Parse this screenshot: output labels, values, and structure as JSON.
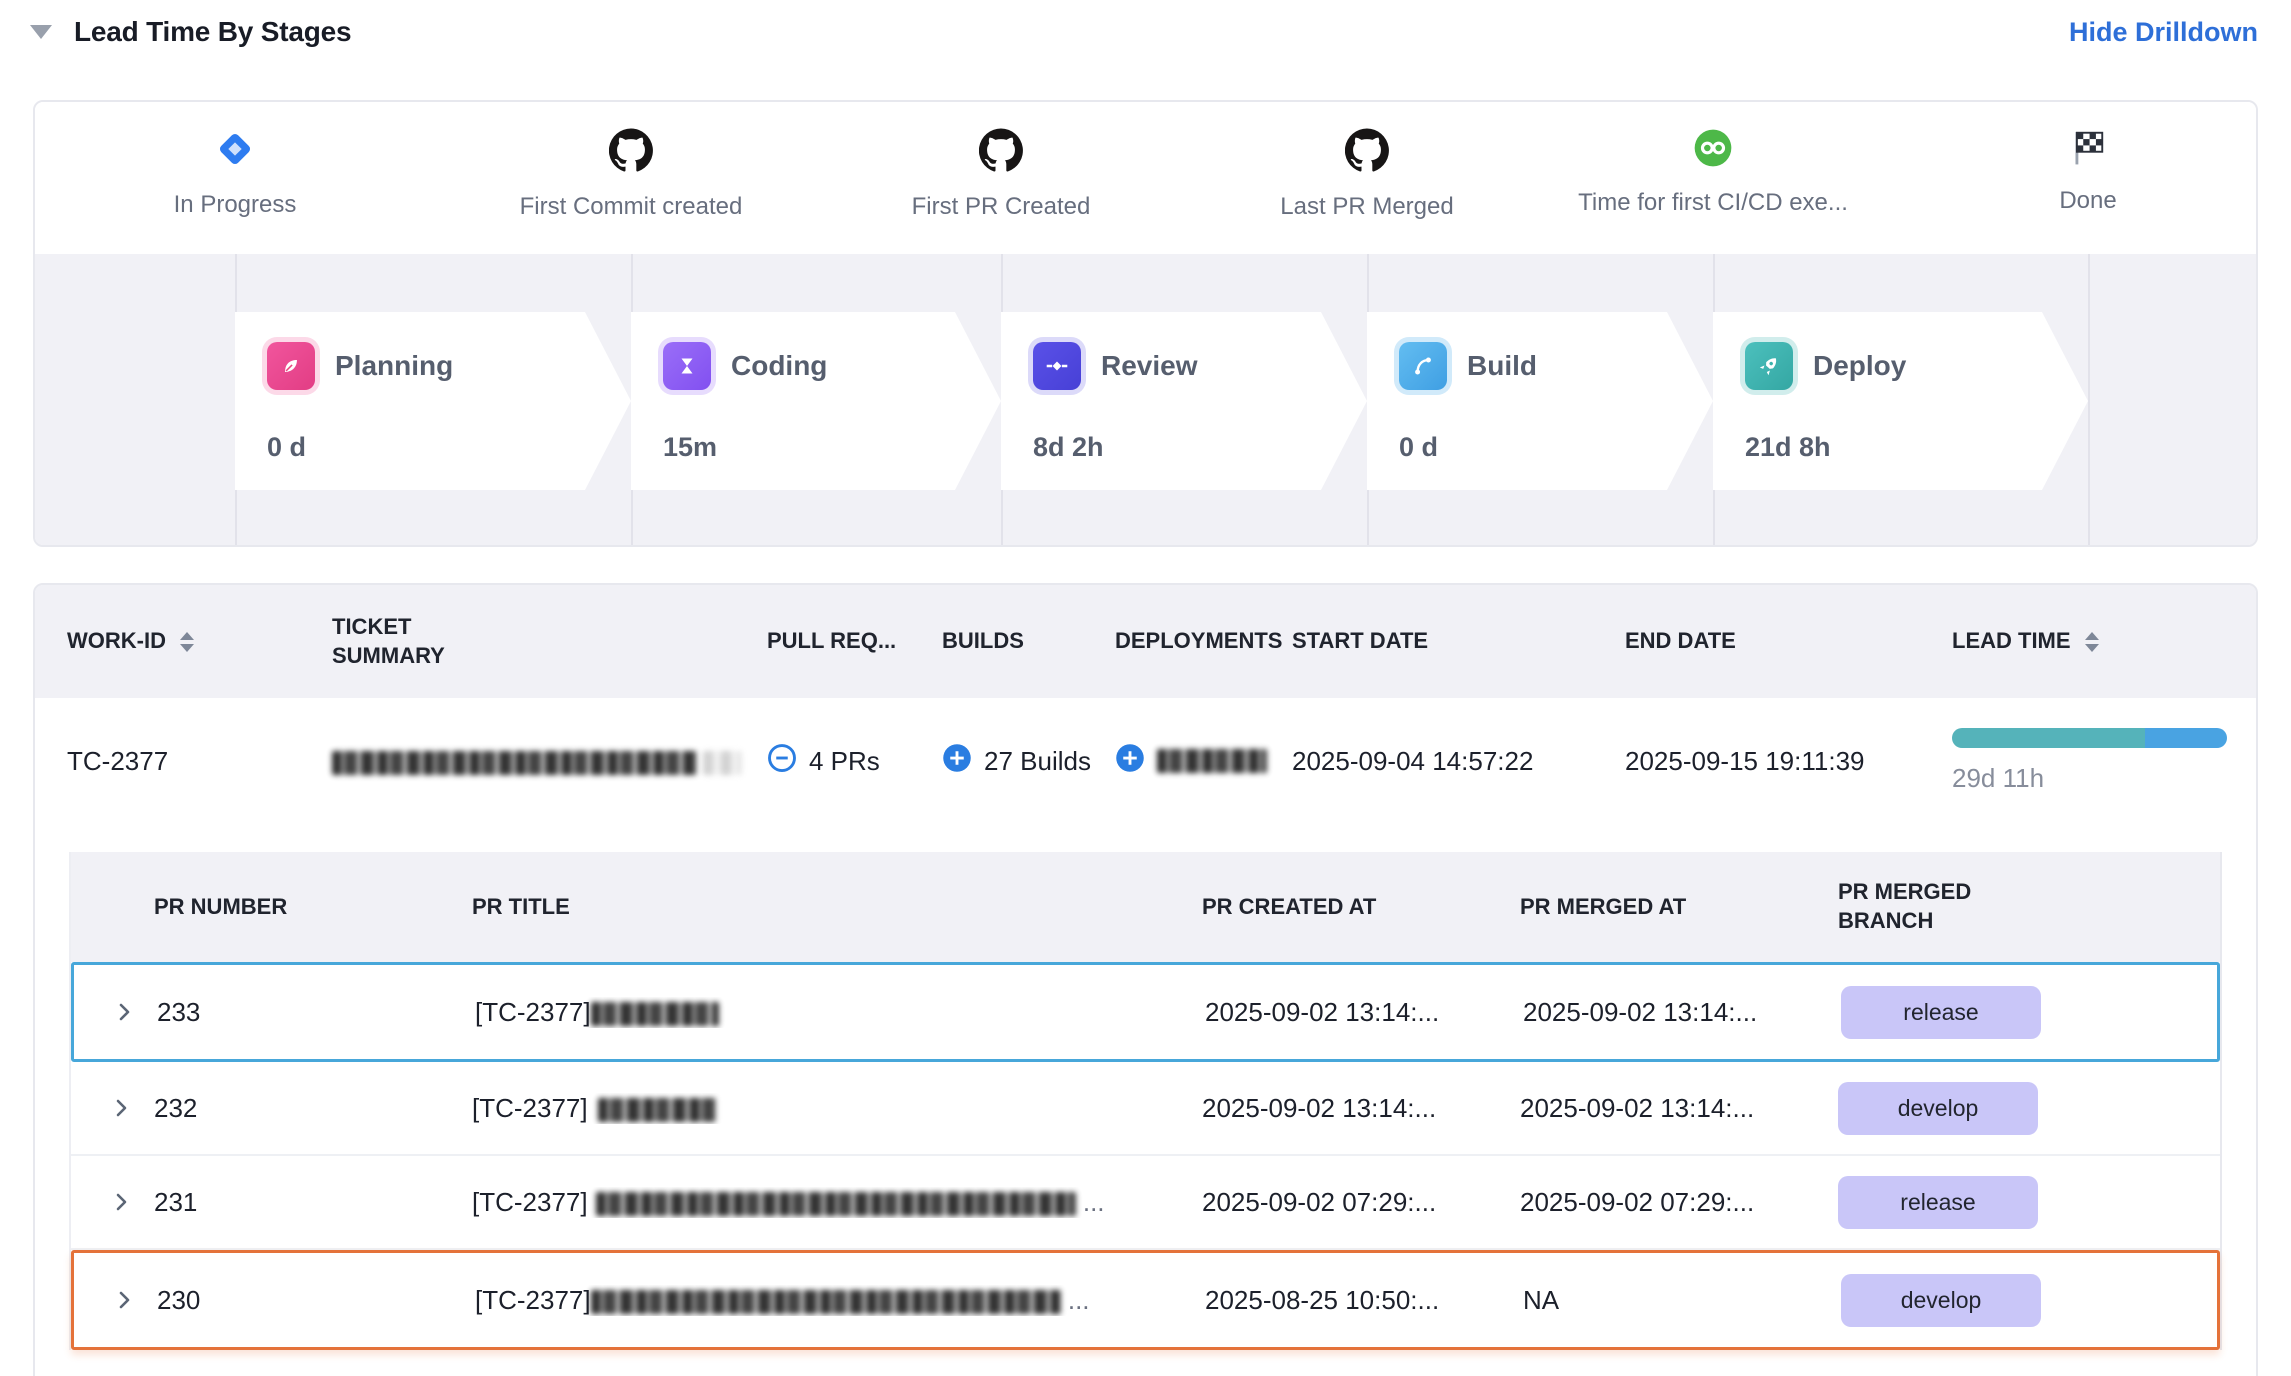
{
  "header": {
    "title": "Lead Time By Stages",
    "drilldown_toggle": "Hide Drilldown"
  },
  "colors": {
    "accent_blue": "#2e6fd8",
    "panel_bg": "#f1f1f6",
    "stage_planning": "#e9457f",
    "stage_coding": "#8b5cf6",
    "stage_review": "#4f46e0",
    "stage_build": "#49a9e9",
    "stage_deploy": "#3db4ad",
    "lead_bar_teal": "#55b3ba",
    "lead_bar_blue": "#49a3e2",
    "badge_bg": "#c9c6f8",
    "highlight_blue": "#47a7da",
    "highlight_orange": "#e4723a",
    "github_black": "#171515",
    "cicd_green": "#4db848",
    "jira_blue": "#2e7cf0"
  },
  "milestones": [
    {
      "label": "In Progress"
    },
    {
      "label": "First Commit created"
    },
    {
      "label": "First PR Created"
    },
    {
      "label": "Last PR Merged"
    },
    {
      "label": "Time for first CI/CD exe..."
    },
    {
      "label": "Done"
    }
  ],
  "stages": [
    {
      "name": "Planning",
      "duration": "0 d"
    },
    {
      "name": "Coding",
      "duration": "15m"
    },
    {
      "name": "Review",
      "duration": "8d 2h"
    },
    {
      "name": "Build",
      "duration": "0 d"
    },
    {
      "name": "Deploy",
      "duration": "21d 8h"
    }
  ],
  "work_table": {
    "columns": [
      "WORK-ID",
      "TICKET SUMMARY",
      "PULL REQ...",
      "BUILDS",
      "DEPLOYMENTS",
      "START DATE",
      "END DATE",
      "LEAD TIME"
    ],
    "row": {
      "work_id": "TC-2377",
      "pull_requests": "4 PRs",
      "builds": "27 Builds",
      "start_date": "2025-09-04 14:57:22",
      "end_date": "2025-09-15 19:11:39",
      "lead_time": "29d 11h",
      "lead_bar": {
        "teal_pct": 70,
        "blue_pct": 30
      }
    }
  },
  "pr_table": {
    "columns": [
      "PR NUMBER",
      "PR TITLE",
      "PR CREATED AT",
      "PR MERGED AT",
      "PR MERGED BRANCH"
    ],
    "ellipsis": "...",
    "rows": [
      {
        "number": "233",
        "title_prefix": "[TC-2377]",
        "created": "2025-09-02 13:14:...",
        "merged": "2025-09-02 13:14:...",
        "branch": "release"
      },
      {
        "number": "232",
        "title_prefix": "[TC-2377]",
        "created": "2025-09-02 13:14:...",
        "merged": "2025-09-02 13:14:...",
        "branch": "develop"
      },
      {
        "number": "231",
        "title_prefix": "[TC-2377]",
        "created": "2025-09-02 07:29:...",
        "merged": "2025-09-02 07:29:...",
        "branch": "release"
      },
      {
        "number": "230",
        "title_prefix": "[TC-2377]",
        "created": "2025-08-25 10:50:...",
        "merged": "NA",
        "branch": "develop"
      }
    ]
  }
}
